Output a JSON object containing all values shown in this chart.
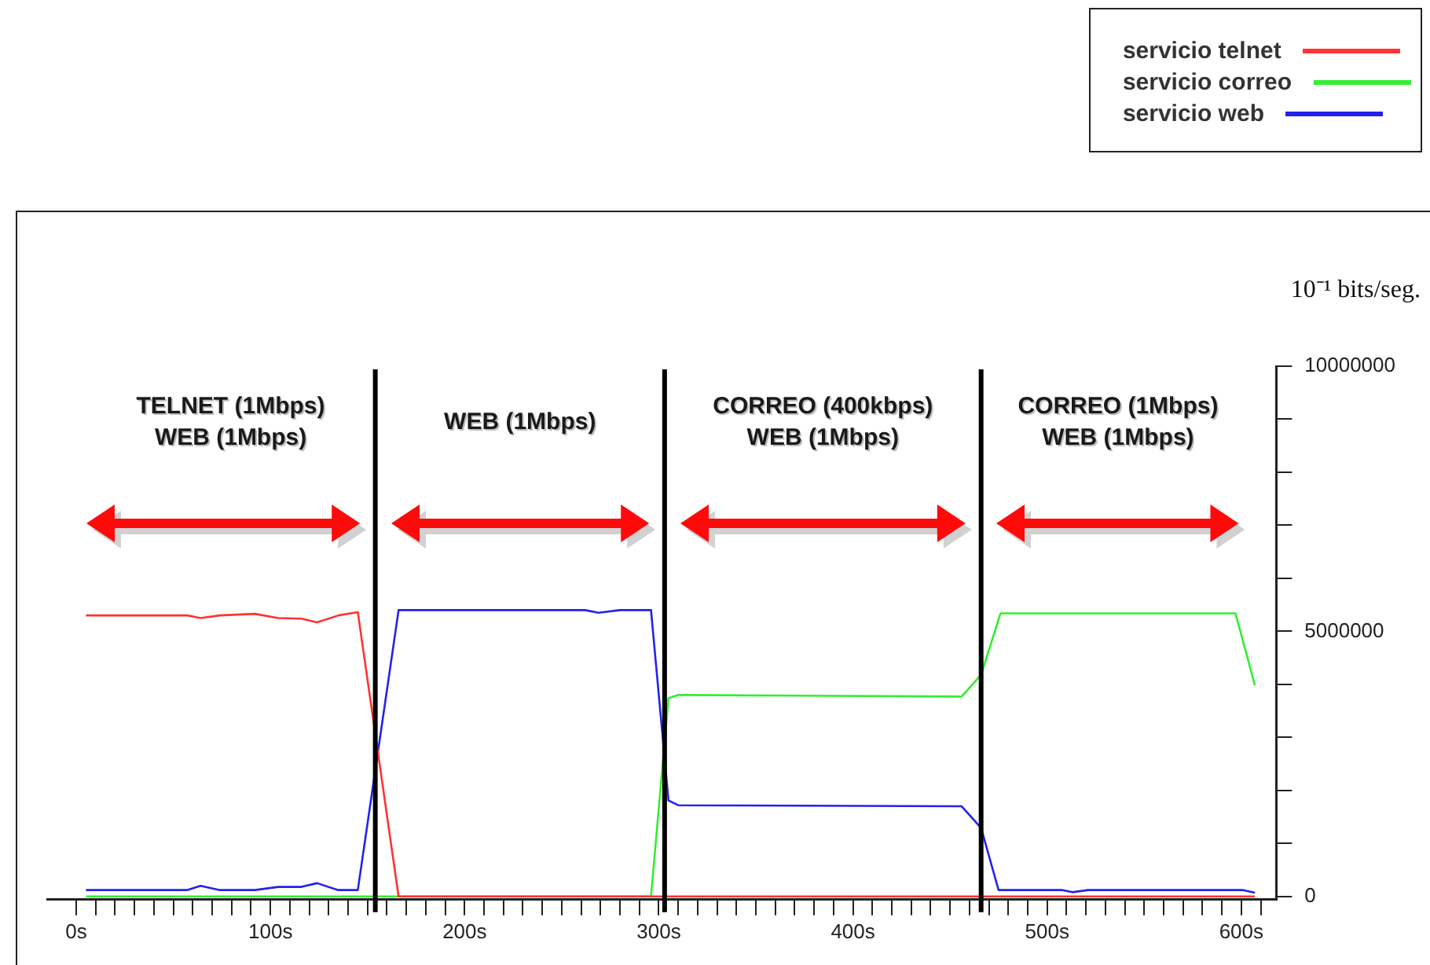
{
  "chart_data": {
    "type": "line",
    "ylabel": "10⁻¹ bits/seg.",
    "legend": "top right",
    "xlim": [
      -15,
      618
    ],
    "ylim": [
      -60000,
      10000000
    ],
    "xticks": [
      {
        "value": 0,
        "label": "0s"
      },
      {
        "value": 10,
        "label": null
      },
      {
        "value": 20,
        "label": null
      },
      {
        "value": 30,
        "label": null
      },
      {
        "value": 40,
        "label": null
      },
      {
        "value": 50,
        "label": null
      },
      {
        "value": 60,
        "label": null
      },
      {
        "value": 70,
        "label": null
      },
      {
        "value": 80,
        "label": null
      },
      {
        "value": 90,
        "label": null
      },
      {
        "value": 100,
        "label": "100s"
      },
      {
        "value": 110,
        "label": null
      },
      {
        "value": 120,
        "label": null
      },
      {
        "value": 130,
        "label": null
      },
      {
        "value": 140,
        "label": null
      },
      {
        "value": 150,
        "label": null
      },
      {
        "value": 160,
        "label": null
      },
      {
        "value": 170,
        "label": null
      },
      {
        "value": 180,
        "label": null
      },
      {
        "value": 190,
        "label": null
      },
      {
        "value": 200,
        "label": "200s"
      },
      {
        "value": 210,
        "label": null
      },
      {
        "value": 220,
        "label": null
      },
      {
        "value": 230,
        "label": null
      },
      {
        "value": 240,
        "label": null
      },
      {
        "value": 250,
        "label": null
      },
      {
        "value": 260,
        "label": null
      },
      {
        "value": 270,
        "label": null
      },
      {
        "value": 280,
        "label": null
      },
      {
        "value": 290,
        "label": null
      },
      {
        "value": 300,
        "label": "300s"
      },
      {
        "value": 310,
        "label": null
      },
      {
        "value": 320,
        "label": null
      },
      {
        "value": 330,
        "label": null
      },
      {
        "value": 340,
        "label": null
      },
      {
        "value": 350,
        "label": null
      },
      {
        "value": 360,
        "label": null
      },
      {
        "value": 370,
        "label": null
      },
      {
        "value": 380,
        "label": null
      },
      {
        "value": 390,
        "label": null
      },
      {
        "value": 400,
        "label": "400s"
      },
      {
        "value": 410,
        "label": null
      },
      {
        "value": 420,
        "label": null
      },
      {
        "value": 430,
        "label": null
      },
      {
        "value": 440,
        "label": null
      },
      {
        "value": 450,
        "label": null
      },
      {
        "value": 460,
        "label": null
      },
      {
        "value": 470,
        "label": null
      },
      {
        "value": 480,
        "label": null
      },
      {
        "value": 490,
        "label": null
      },
      {
        "value": 500,
        "label": "500s"
      },
      {
        "value": 510,
        "label": null
      },
      {
        "value": 520,
        "label": null
      },
      {
        "value": 530,
        "label": null
      },
      {
        "value": 540,
        "label": null
      },
      {
        "value": 550,
        "label": null
      },
      {
        "value": 560,
        "label": null
      },
      {
        "value": 570,
        "label": null
      },
      {
        "value": 580,
        "label": null
      },
      {
        "value": 590,
        "label": null
      },
      {
        "value": 600,
        "label": "600s"
      },
      {
        "value": 610,
        "label": null
      }
    ],
    "yticks": [
      0,
      {
        "value": 1000000,
        "label": null
      },
      {
        "value": 2000000,
        "label": null
      },
      {
        "value": 3000000,
        "label": null
      },
      {
        "value": 4000000,
        "label": null
      },
      5000000,
      {
        "value": 6000000,
        "label": null
      },
      {
        "value": 7000000,
        "label": null
      },
      {
        "value": 8000000,
        "label": null
      },
      {
        "value": 9000000,
        "label": null
      },
      10000000
    ],
    "grid": false,
    "ref_lines": [
      {
        "axis": "x",
        "value": 154,
        "color": "#000000"
      },
      {
        "axis": "x",
        "value": 303,
        "color": "#000000"
      },
      {
        "axis": "x",
        "value": 466,
        "color": "#000000"
      }
    ],
    "annotations": [
      "TELNET (1Mbps)\nWEB (1Mbps)",
      "WEB (1Mbps)",
      "CORREO (400kbps)\nWEB (1Mbps)",
      "CORREO (1Mbps)\nWEB (1Mbps)"
    ],
    "series": [
      {
        "name": "servicio telnet",
        "color": "#ff3333",
        "x": [
          5,
          57,
          64,
          74,
          92,
          104,
          116,
          124,
          135,
          145,
          166,
          607
        ],
        "values": [
          5300000,
          5300000,
          5250000,
          5300000,
          5330000,
          5250000,
          5240000,
          5170000,
          5300000,
          5360000,
          0,
          0
        ]
      },
      {
        "name": "servicio correo",
        "color": "#33ee33",
        "x": [
          5,
          296,
          305,
          310,
          456,
          466,
          476,
          597,
          607
        ],
        "values": [
          0,
          0,
          3740000,
          3800000,
          3770000,
          4180000,
          5340000,
          5340000,
          3980000
        ]
      },
      {
        "name": "servicio web",
        "color": "#2222ee",
        "x": [
          5,
          57,
          64,
          74,
          92,
          104,
          116,
          124,
          135,
          145,
          166,
          262,
          269,
          280,
          296,
          305,
          310,
          456,
          466,
          475,
          508,
          513,
          521,
          601,
          607
        ],
        "values": [
          120000,
          120000,
          200000,
          120000,
          120000,
          180000,
          180000,
          250000,
          120000,
          120000,
          5400000,
          5400000,
          5350000,
          5400000,
          5400000,
          1810000,
          1720000,
          1700000,
          1290000,
          120000,
          120000,
          80000,
          120000,
          120000,
          70000
        ]
      }
    ]
  }
}
